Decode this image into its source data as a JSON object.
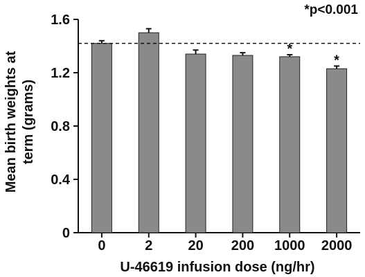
{
  "chart_data": {
    "type": "bar",
    "categories": [
      "0",
      "2",
      "20",
      "200",
      "1000",
      "2000"
    ],
    "values": [
      1.42,
      1.5,
      1.34,
      1.33,
      1.32,
      1.23
    ],
    "errors": [
      0.02,
      0.03,
      0.03,
      0.02,
      0.015,
      0.02
    ],
    "significant": [
      false,
      false,
      false,
      false,
      true,
      true
    ],
    "significance_marker": "*",
    "reference_line": 1.42,
    "xlabel": "U-46619 infusion dose (ng/hr)",
    "ylabel_lines": [
      "Mean birth weights at",
      "term (grams)"
    ],
    "ylim": [
      0,
      1.6
    ],
    "yticks": [
      "0",
      "0.4",
      "0.8",
      "1.2",
      "1.6"
    ],
    "annotation": "*p<0.001",
    "grid": false,
    "bar_color": "#8a8a8a"
  }
}
